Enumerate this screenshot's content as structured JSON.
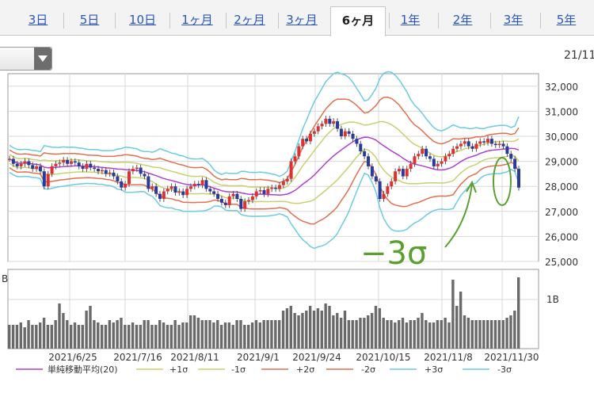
{
  "tabs": [
    {
      "label": "3日",
      "active": false
    },
    {
      "label": "5日",
      "active": false
    },
    {
      "label": "10日",
      "active": false
    },
    {
      "label": "1ヶ月",
      "active": false
    },
    {
      "label": "2ヶ月",
      "active": false
    },
    {
      "label": "3ヶ月",
      "active": false
    },
    {
      "label": "6ヶ月",
      "active": true
    },
    {
      "label": "1年",
      "active": false
    },
    {
      "label": "2年",
      "active": false
    },
    {
      "label": "3年",
      "active": false
    },
    {
      "label": "5年",
      "active": false
    }
  ],
  "date_label": "21/11",
  "colors": {
    "up": "#e03030",
    "down": "#2a3a9a",
    "ma": "#b040d0",
    "s1": "#c8d070",
    "s2": "#e07050",
    "s3": "#6ccbe0",
    "grid": "#d8d8d8",
    "volume": "#6a6a6a",
    "annotation": "#5aa030"
  },
  "chart_data": {
    "type": "candlestick",
    "ylim": [
      25000,
      32500
    ],
    "yticks": [
      "32,000",
      "31,000",
      "30,000",
      "29,000",
      "28,000",
      "27,000",
      "26,000",
      "25,000"
    ],
    "xlabels": [
      "2021/6/25",
      "2021/7/16",
      "2021/8/11",
      "2021/9/1",
      "2021/9/24",
      "2021/10/15",
      "2021/11/8",
      "2021/11/30"
    ],
    "volume_label": "1B",
    "volume_unit_label": "B",
    "legend_prefix": "",
    "legend": [
      "単純移動平均(20)",
      "+1σ",
      "-1σ",
      "+2σ",
      "-2σ",
      "+3σ",
      "-3σ"
    ],
    "annotation": "−3σ",
    "close": [
      29100,
      28900,
      28800,
      28900,
      29000,
      28850,
      28700,
      28800,
      28600,
      28000,
      28500,
      28800,
      28900,
      28950,
      29050,
      28900,
      29000,
      28950,
      28800,
      28700,
      28900,
      28750,
      28700,
      28600,
      28650,
      28500,
      28550,
      28400,
      28200,
      27950,
      28100,
      28600,
      28700,
      28750,
      28500,
      28400,
      27900,
      28000,
      27700,
      27500,
      27800,
      27900,
      28000,
      27750,
      27800,
      27650,
      27900,
      28000,
      28100,
      28050,
      28250,
      27900,
      27800,
      27700,
      27500,
      27350,
      27250,
      27600,
      27700,
      27500,
      27100,
      27400,
      27450,
      27600,
      27800,
      27850,
      27700,
      27900,
      27950,
      27900,
      28050,
      28200,
      28300,
      29000,
      29200,
      29600,
      29900,
      29800,
      30100,
      30200,
      30400,
      30500,
      30700,
      30500,
      30600,
      30300,
      30000,
      30200,
      30100,
      29900,
      29700,
      29400,
      29200,
      28800,
      28400,
      28200,
      27500,
      27700,
      28000,
      28200,
      28600,
      28700,
      28400,
      28700,
      28900,
      29200,
      29300,
      29500,
      29200,
      29100,
      28800,
      28900,
      29000,
      29200,
      29300,
      29500,
      29600,
      29700,
      29800,
      29600,
      29500,
      29700,
      29800,
      29750,
      29900,
      29700,
      29650,
      29700,
      29600,
      29300,
      29100,
      28700,
      27950
    ],
    "volume": [
      0.5,
      0.5,
      0.5,
      0.55,
      0.45,
      0.6,
      0.5,
      0.5,
      0.55,
      0.65,
      0.5,
      0.5,
      0.6,
      0.95,
      0.75,
      0.6,
      0.5,
      0.55,
      0.5,
      0.5,
      0.8,
      0.9,
      0.6,
      0.55,
      0.5,
      0.5,
      0.6,
      0.55,
      0.6,
      0.65,
      0.5,
      0.5,
      0.55,
      0.5,
      0.5,
      0.6,
      0.6,
      0.5,
      0.5,
      0.6,
      0.55,
      0.5,
      0.5,
      0.6,
      0.5,
      0.55,
      0.55,
      0.7,
      0.7,
      0.65,
      0.6,
      0.6,
      0.6,
      0.55,
      0.6,
      0.5,
      0.55,
      0.55,
      0.5,
      0.6,
      0.6,
      0.5,
      0.5,
      0.55,
      0.6,
      0.55,
      0.6,
      0.6,
      0.6,
      0.6,
      0.6,
      0.8,
      0.85,
      0.9,
      0.75,
      0.7,
      0.75,
      0.8,
      0.9,
      0.8,
      0.85,
      0.8,
      0.95,
      0.9,
      0.7,
      0.75,
      0.65,
      0.8,
      0.6,
      0.6,
      0.6,
      0.65,
      0.65,
      0.7,
      0.75,
      0.9,
      0.85,
      0.65,
      0.6,
      0.6,
      0.55,
      0.6,
      0.65,
      0.55,
      0.6,
      0.6,
      0.65,
      0.75,
      0.6,
      0.55,
      0.55,
      0.6,
      0.6,
      0.65,
      0.55,
      1.45,
      0.9,
      1.2,
      0.7,
      0.65,
      0.6,
      0.6,
      0.6,
      0.6,
      0.6,
      0.6,
      0.6,
      0.6,
      0.6,
      0.65,
      0.7,
      0.8,
      1.5
    ]
  }
}
